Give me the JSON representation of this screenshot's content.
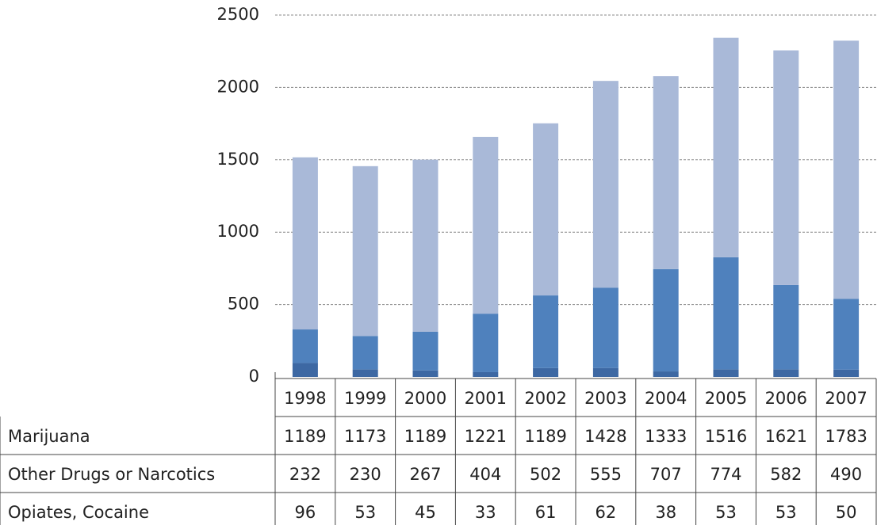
{
  "chart_data": {
    "type": "stacked_bar",
    "categories": [
      "1998",
      "1999",
      "2000",
      "2001",
      "2002",
      "2003",
      "2004",
      "2005",
      "2006",
      "2007"
    ],
    "series": [
      {
        "name": "Marijuana",
        "color": "#a9b9d8",
        "values": [
          1189,
          1173,
          1189,
          1221,
          1189,
          1428,
          1333,
          1516,
          1621,
          1783
        ]
      },
      {
        "name": "Other Drugs or Narcotics",
        "color": "#4f81bd",
        "values": [
          232,
          230,
          267,
          404,
          502,
          555,
          707,
          774,
          582,
          490
        ]
      },
      {
        "name": "Opiates, Cocaine",
        "color": "#3d68a3",
        "values": [
          96,
          53,
          45,
          33,
          61,
          62,
          38,
          53,
          53,
          50
        ]
      }
    ],
    "ylim": [
      0,
      2500
    ],
    "yticks": [
      0,
      500,
      1000,
      1500,
      2000,
      2500
    ],
    "grid": true
  }
}
